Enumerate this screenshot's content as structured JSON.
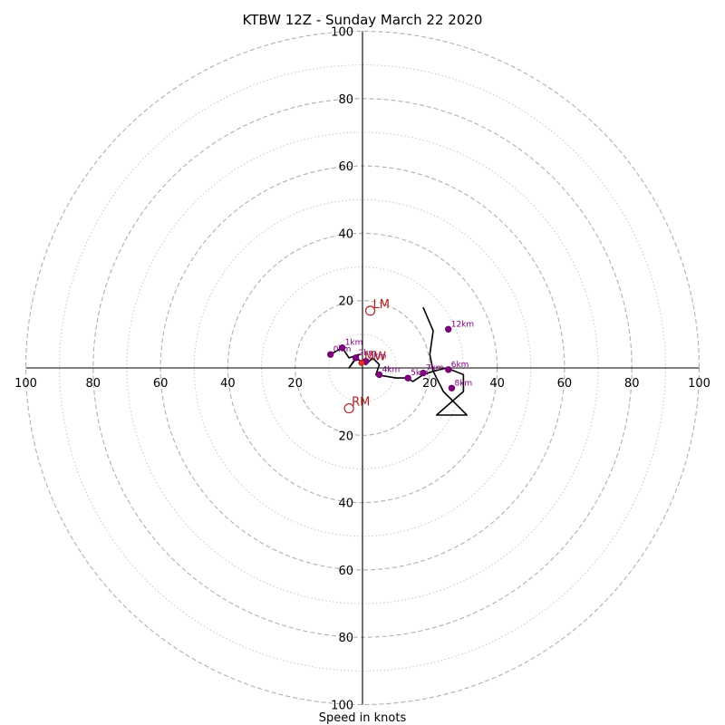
{
  "chart_data": {
    "type": "scatter",
    "title": "KTBW 12Z - Sunday March 22 2020",
    "xlabel": "Speed in knots",
    "ylabel": "",
    "xlim": [
      -100,
      100
    ],
    "ylim": [
      -100,
      100
    ],
    "major_rings": [
      20,
      40,
      60,
      80,
      100
    ],
    "minor_rings": [
      10,
      30,
      50,
      70,
      90
    ],
    "x_tick_labels": [
      "100",
      "80",
      "60",
      "40",
      "20",
      "20",
      "40",
      "60",
      "80",
      "100"
    ],
    "y_tick_labels": [
      "100",
      "80",
      "60",
      "40",
      "20",
      "20",
      "40",
      "60",
      "80",
      "100"
    ],
    "grid": true,
    "hodograph_u": [
      -9.5,
      -6,
      -4,
      -1,
      -4,
      -2,
      1,
      3,
      5,
      5,
      4,
      10,
      13,
      15,
      18,
      21,
      25,
      30,
      30,
      22,
      31,
      24,
      21,
      20,
      21,
      18
    ],
    "hodograph_v": [
      4,
      6,
      3,
      4,
      0,
      3,
      1,
      3,
      1,
      1,
      -2,
      -3,
      -3,
      -4,
      -2,
      -1,
      0,
      -2,
      -7,
      -14,
      -14,
      -7,
      -1,
      4,
      11,
      18
    ],
    "height_markers": [
      {
        "label": "0km",
        "u": -9.5,
        "v": 4
      },
      {
        "label": "1km",
        "u": -6,
        "v": 6
      },
      {
        "label": "2km",
        "u": -2,
        "v": 3
      },
      {
        "label": "3km",
        "u": 1,
        "v": 2
      },
      {
        "label": "4km",
        "u": 5,
        "v": -2
      },
      {
        "label": "5km",
        "u": 13.5,
        "v": -3
      },
      {
        "label": "6km",
        "u": 25.5,
        "v": -0.5
      },
      {
        "label": "7km",
        "u": 18,
        "v": -1.5
      },
      {
        "label": "8km",
        "u": 26.5,
        "v": -6
      },
      {
        "label": "12km",
        "u": 25.5,
        "v": 11.5
      }
    ],
    "storm_motions": [
      {
        "label": "LM",
        "u": 2.3,
        "v": 17
      },
      {
        "label": "MW",
        "u": -0.3,
        "v": 1.5
      },
      {
        "label": "RM",
        "u": -4,
        "v": -12
      }
    ]
  }
}
